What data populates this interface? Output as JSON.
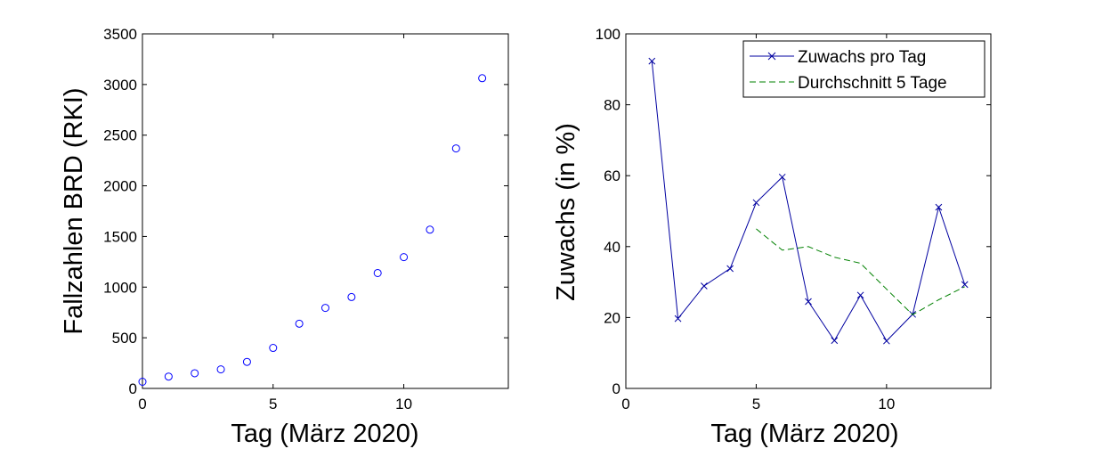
{
  "colors": {
    "marker": "#0000ff",
    "line_daily": "#0000a0",
    "line_avg": "#008000",
    "axes": "#000000"
  },
  "chart_data": [
    {
      "type": "scatter",
      "xlabel": "Tag (März 2020)",
      "ylabel": "Fallzahlen BRD (RKI)",
      "xlim": [
        0,
        14
      ],
      "ylim": [
        0,
        3500
      ],
      "xticks": [
        0,
        5,
        10
      ],
      "yticks": [
        0,
        500,
        1000,
        1500,
        2000,
        2500,
        3000,
        3500
      ],
      "marker": "circle",
      "series": [
        {
          "x": [
            0,
            1,
            2,
            3,
            4,
            5,
            6,
            7,
            8,
            9,
            10,
            11,
            12,
            13
          ],
          "y": [
            66,
            117,
            150,
            188,
            262,
            400,
            639,
            795,
            902,
            1139,
            1296,
            1567,
            2369,
            3062
          ]
        }
      ]
    },
    {
      "type": "line",
      "xlabel": "Tag (März 2020)",
      "ylabel": "Zuwachs (in %)",
      "xlim": [
        0,
        14
      ],
      "ylim": [
        0,
        100
      ],
      "xticks": [
        0,
        5,
        10
      ],
      "yticks": [
        0,
        20,
        40,
        60,
        80,
        100
      ],
      "legend": "top-right",
      "series": [
        {
          "name": "Zuwachs pro Tag",
          "style": "solid-x",
          "x": [
            1,
            2,
            3,
            4,
            5,
            6,
            7,
            8,
            9,
            10,
            11,
            12,
            13
          ],
          "y": [
            92.3,
            19.7,
            28.9,
            33.8,
            52.4,
            59.6,
            24.5,
            13.5,
            26.3,
            13.4,
            20.9,
            51.1,
            29.3
          ]
        },
        {
          "name": "Durchschnitt 5 Tage",
          "style": "dashed",
          "x": [
            5,
            6,
            7,
            8,
            9,
            10,
            11,
            12,
            13
          ],
          "y": [
            45.0,
            39.0,
            40.0,
            37.0,
            35.3,
            28.0,
            20.8,
            25.0,
            28.7
          ]
        }
      ]
    }
  ]
}
